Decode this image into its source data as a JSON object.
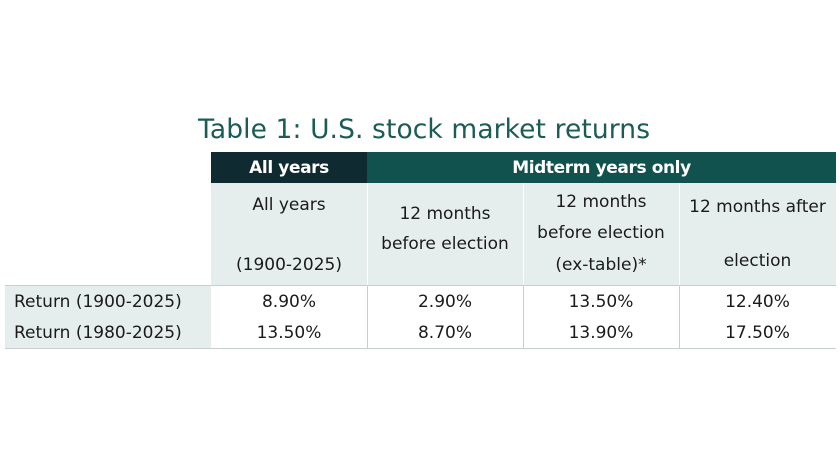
{
  "title": "Table 1: U.S. stock market returns",
  "group_headers": {
    "all_years": "All years",
    "midterm": "Midterm years only"
  },
  "columns": [
    {
      "line1": "All years",
      "line2": "",
      "line3": "(1900-2025)"
    },
    {
      "line1": "12 months",
      "line2": "before election",
      "line3": ""
    },
    {
      "line1": "12 months",
      "line2": "before election",
      "line3": "(ex-table)*"
    },
    {
      "line1": "12 months after",
      "line2": "",
      "line3": "election"
    }
  ],
  "rows": [
    {
      "label": "Return (1900-2025)",
      "values": [
        "8.90%",
        "2.90%",
        "13.50%",
        "12.40%"
      ]
    },
    {
      "label": "Return (1980-2025)",
      "values": [
        "13.50%",
        "8.70%",
        "13.90%",
        "17.50%"
      ]
    }
  ],
  "colors": {
    "title": "#1b5c55",
    "header_dark": "#0f2a30",
    "header_teal": "#11524f",
    "light_fill": "#e6eded"
  }
}
